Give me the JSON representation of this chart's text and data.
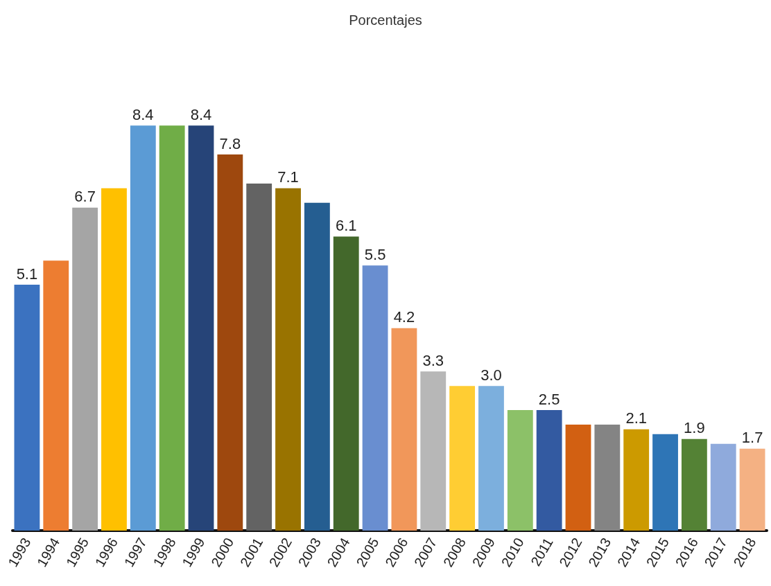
{
  "chart_data": {
    "type": "bar",
    "title": "Porcentajes",
    "categories": [
      "1993",
      "1994",
      "1995",
      "1996",
      "1997",
      "1998",
      "1999",
      "2000",
      "2001",
      "2002",
      "2003",
      "2004",
      "2005",
      "2006",
      "2007",
      "2008",
      "2009",
      "2010",
      "2011",
      "2012",
      "2013",
      "2014",
      "2015",
      "2016",
      "2017",
      "2018"
    ],
    "values": [
      5.1,
      5.6,
      6.7,
      7.1,
      8.4,
      8.4,
      8.4,
      7.8,
      7.2,
      7.1,
      6.8,
      6.1,
      5.5,
      4.2,
      3.3,
      3.0,
      3.0,
      2.5,
      2.5,
      2.2,
      2.2,
      2.1,
      2.0,
      1.9,
      1.8,
      1.7
    ],
    "value_labels": [
      "5.1",
      null,
      "6.7",
      null,
      "8.4",
      null,
      "8.4",
      "7.8",
      null,
      "7.1",
      null,
      "6.1",
      "5.5",
      "4.2",
      "3.3",
      null,
      "3.0",
      null,
      "2.5",
      null,
      null,
      "2.1",
      null,
      "1.9",
      null,
      "1.7"
    ],
    "colors": [
      "#3b72c0",
      "#ed7d31",
      "#a5a5a5",
      "#ffc000",
      "#5b9bd5",
      "#70ad47",
      "#264478",
      "#9e480e",
      "#636363",
      "#997300",
      "#255e91",
      "#43682b",
      "#698ed0",
      "#f1975a",
      "#b7b7b7",
      "#ffcd33",
      "#7cafdd",
      "#8cc168",
      "#335aa1",
      "#d26012",
      "#848484",
      "#cc9a00",
      "#2e75b6",
      "#548235",
      "#8faadc",
      "#f4b183"
    ],
    "grid": false
  }
}
